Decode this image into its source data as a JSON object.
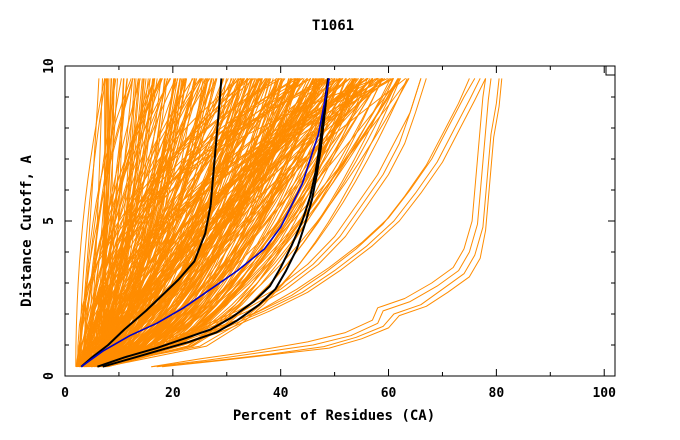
{
  "chart_data": {
    "type": "line",
    "title": "T1061",
    "xlabel": "Percent of Residues (CA)",
    "ylabel": "Distance Cutoff, A",
    "xlim": [
      0,
      102
    ],
    "ylim": [
      0,
      10
    ],
    "x_ticks": [
      "0",
      "20",
      "40",
      "60",
      "80",
      "100"
    ],
    "y_ticks": [
      "0",
      "5",
      "10"
    ],
    "grid": false,
    "colors": {
      "bundle": "#ff8c00",
      "highlight_black": "#000000",
      "highlight_blue": "#0000cc"
    },
    "series": [
      {
        "style": "black",
        "points": [
          [
            3,
            0.3
          ],
          [
            5,
            0.6
          ],
          [
            8,
            1.0
          ],
          [
            11,
            1.5
          ],
          [
            15,
            2.1
          ],
          [
            18,
            2.6
          ],
          [
            21,
            3.1
          ],
          [
            24,
            3.7
          ],
          [
            26,
            4.6
          ],
          [
            27,
            5.5
          ],
          [
            27.5,
            6.5
          ],
          [
            28,
            7.5
          ],
          [
            28.5,
            8.5
          ],
          [
            29,
            9.6
          ]
        ]
      },
      {
        "style": "blue",
        "points": [
          [
            3,
            0.3
          ],
          [
            7,
            0.8
          ],
          [
            12,
            1.3
          ],
          [
            17,
            1.7
          ],
          [
            22,
            2.2
          ],
          [
            27,
            2.8
          ],
          [
            32,
            3.4
          ],
          [
            37,
            4.1
          ],
          [
            40,
            4.8
          ],
          [
            42,
            5.5
          ],
          [
            44,
            6.2
          ],
          [
            45.5,
            7.0
          ],
          [
            47,
            7.8
          ],
          [
            48,
            8.7
          ],
          [
            49,
            9.6
          ]
        ]
      },
      {
        "style": "black",
        "points": [
          [
            6,
            0.3
          ],
          [
            11,
            0.6
          ],
          [
            17,
            0.9
          ],
          [
            22,
            1.2
          ],
          [
            27,
            1.5
          ],
          [
            31,
            1.9
          ],
          [
            35,
            2.4
          ],
          [
            38,
            2.9
          ],
          [
            40,
            3.5
          ],
          [
            42,
            4.2
          ],
          [
            44,
            5.0
          ],
          [
            45.5,
            5.8
          ],
          [
            46.5,
            6.6
          ],
          [
            47.2,
            7.4
          ],
          [
            47.8,
            8.2
          ],
          [
            48.3,
            9.0
          ],
          [
            48.8,
            9.6
          ]
        ]
      },
      {
        "style": "black",
        "points": [
          [
            7,
            0.3
          ],
          [
            12,
            0.55
          ],
          [
            18,
            0.85
          ],
          [
            23,
            1.1
          ],
          [
            28,
            1.4
          ],
          [
            32,
            1.8
          ],
          [
            36,
            2.3
          ],
          [
            39,
            2.8
          ],
          [
            41,
            3.4
          ],
          [
            43,
            4.1
          ],
          [
            44.5,
            4.9
          ],
          [
            45.8,
            5.7
          ],
          [
            46.7,
            6.5
          ],
          [
            47.4,
            7.3
          ],
          [
            48,
            8.2
          ],
          [
            48.5,
            9.0
          ],
          [
            48.9,
            9.6
          ]
        ]
      },
      {
        "style": "orange",
        "points": [
          [
            16,
            0.3
          ],
          [
            25,
            0.55
          ],
          [
            35,
            0.8
          ],
          [
            45,
            1.1
          ],
          [
            52,
            1.4
          ],
          [
            57,
            1.8
          ],
          [
            58,
            2.2
          ],
          [
            63,
            2.5
          ],
          [
            68,
            3.0
          ],
          [
            72,
            3.5
          ],
          [
            74,
            4.1
          ],
          [
            75.5,
            5.0
          ],
          [
            76,
            6.0
          ],
          [
            76.5,
            7.0
          ],
          [
            77,
            8.0
          ],
          [
            77.5,
            9.0
          ],
          [
            78,
            9.6
          ]
        ]
      },
      {
        "style": "orange",
        "points": [
          [
            16,
            0.3
          ],
          [
            26,
            0.5
          ],
          [
            36,
            0.75
          ],
          [
            46,
            1.0
          ],
          [
            53,
            1.3
          ],
          [
            58,
            1.7
          ],
          [
            59,
            2.1
          ],
          [
            64,
            2.4
          ],
          [
            69,
            2.9
          ],
          [
            73,
            3.4
          ],
          [
            75,
            4.0
          ],
          [
            76.5,
            4.9
          ],
          [
            77,
            5.9
          ],
          [
            77.5,
            6.9
          ],
          [
            78,
            7.9
          ],
          [
            78.5,
            8.9
          ],
          [
            79,
            9.6
          ]
        ]
      },
      {
        "style": "orange",
        "points": [
          [
            17,
            0.3
          ],
          [
            28,
            0.5
          ],
          [
            38,
            0.7
          ],
          [
            48,
            0.95
          ],
          [
            54,
            1.25
          ],
          [
            59,
            1.6
          ],
          [
            61,
            2.0
          ],
          [
            66,
            2.3
          ],
          [
            70,
            2.8
          ],
          [
            74,
            3.3
          ],
          [
            76,
            3.9
          ],
          [
            77.5,
            4.8
          ],
          [
            78,
            5.8
          ],
          [
            78.5,
            6.8
          ],
          [
            79,
            7.8
          ],
          [
            80,
            8.8
          ],
          [
            80.5,
            9.6
          ]
        ]
      },
      {
        "style": "orange",
        "points": [
          [
            18,
            0.3
          ],
          [
            29,
            0.5
          ],
          [
            39,
            0.7
          ],
          [
            49,
            0.9
          ],
          [
            55,
            1.2
          ],
          [
            60,
            1.55
          ],
          [
            62,
            1.95
          ],
          [
            67,
            2.25
          ],
          [
            71,
            2.7
          ],
          [
            75,
            3.2
          ],
          [
            77,
            3.8
          ],
          [
            78,
            4.7
          ],
          [
            78.5,
            5.7
          ],
          [
            79,
            6.7
          ],
          [
            79.5,
            7.7
          ],
          [
            80.5,
            8.7
          ],
          [
            81,
            9.6
          ]
        ]
      },
      {
        "style": "orange",
        "points": [
          [
            5,
            0.3
          ],
          [
            12,
            0.6
          ],
          [
            20,
            1.0
          ],
          [
            28,
            1.5
          ],
          [
            36,
            2.1
          ],
          [
            43,
            2.8
          ],
          [
            49,
            3.5
          ],
          [
            55,
            4.3
          ],
          [
            60,
            5.1
          ],
          [
            64,
            6.0
          ],
          [
            68,
            7.0
          ],
          [
            71,
            8.0
          ],
          [
            74,
            9.0
          ],
          [
            76,
            9.6
          ]
        ]
      },
      {
        "style": "orange",
        "points": [
          [
            6,
            0.3
          ],
          [
            13,
            0.6
          ],
          [
            21,
            1.0
          ],
          [
            29,
            1.5
          ],
          [
            37,
            2.1
          ],
          [
            44,
            2.7
          ],
          [
            50,
            3.4
          ],
          [
            56,
            4.2
          ],
          [
            61,
            5.0
          ],
          [
            65,
            5.9
          ],
          [
            69,
            6.9
          ],
          [
            72,
            7.9
          ],
          [
            75,
            8.9
          ],
          [
            77,
            9.6
          ]
        ]
      },
      {
        "style": "orange",
        "points": [
          [
            5,
            0.3
          ],
          [
            11,
            0.6
          ],
          [
            19,
            1.0
          ],
          [
            27,
            1.5
          ],
          [
            35,
            2.0
          ],
          [
            42,
            2.6
          ],
          [
            48,
            3.3
          ],
          [
            54,
            4.1
          ],
          [
            59,
            4.9
          ],
          [
            63,
            5.8
          ],
          [
            67,
            6.8
          ],
          [
            70,
            7.8
          ],
          [
            73,
            8.8
          ],
          [
            75,
            9.6
          ]
        ]
      },
      {
        "style": "orange",
        "points": [
          [
            7,
            0.3
          ],
          [
            14,
            0.6
          ],
          [
            22,
            1.0
          ],
          [
            30,
            1.5
          ],
          [
            38,
            2.1
          ],
          [
            45,
            2.7
          ],
          [
            51,
            3.4
          ],
          [
            57,
            4.2
          ],
          [
            62,
            5.0
          ],
          [
            66,
            5.9
          ],
          [
            70,
            6.9
          ],
          [
            73,
            7.9
          ],
          [
            76,
            8.9
          ],
          [
            78,
            9.6
          ]
        ]
      },
      {
        "style": "orange",
        "points": [
          [
            4,
            0.3
          ],
          [
            10,
            0.6
          ],
          [
            17,
            1.0
          ],
          [
            25,
            1.5
          ],
          [
            33,
            2.1
          ],
          [
            40,
            2.8
          ],
          [
            46,
            3.6
          ],
          [
            51,
            4.5
          ],
          [
            55,
            5.5
          ],
          [
            59,
            6.5
          ],
          [
            62,
            7.5
          ],
          [
            64,
            8.5
          ],
          [
            66,
            9.6
          ]
        ]
      },
      {
        "style": "orange",
        "points": [
          [
            5,
            0.3
          ],
          [
            11,
            0.6
          ],
          [
            18,
            1.0
          ],
          [
            26,
            1.5
          ],
          [
            34,
            2.1
          ],
          [
            41,
            2.8
          ],
          [
            47,
            3.6
          ],
          [
            52,
            4.5
          ],
          [
            56,
            5.5
          ],
          [
            60,
            6.5
          ],
          [
            63,
            7.5
          ],
          [
            65,
            8.5
          ],
          [
            67,
            9.6
          ]
        ]
      },
      {
        "style": "orange",
        "points": [
          [
            4,
            0.3
          ],
          [
            9,
            0.6
          ],
          [
            16,
            1.0
          ],
          [
            24,
            1.5
          ],
          [
            32,
            2.1
          ],
          [
            39,
            2.8
          ],
          [
            45,
            3.6
          ],
          [
            50,
            4.5
          ],
          [
            54,
            5.5
          ],
          [
            58,
            6.5
          ],
          [
            61,
            7.5
          ],
          [
            64,
            8.5
          ],
          [
            66,
            9.6
          ]
        ]
      }
    ]
  }
}
